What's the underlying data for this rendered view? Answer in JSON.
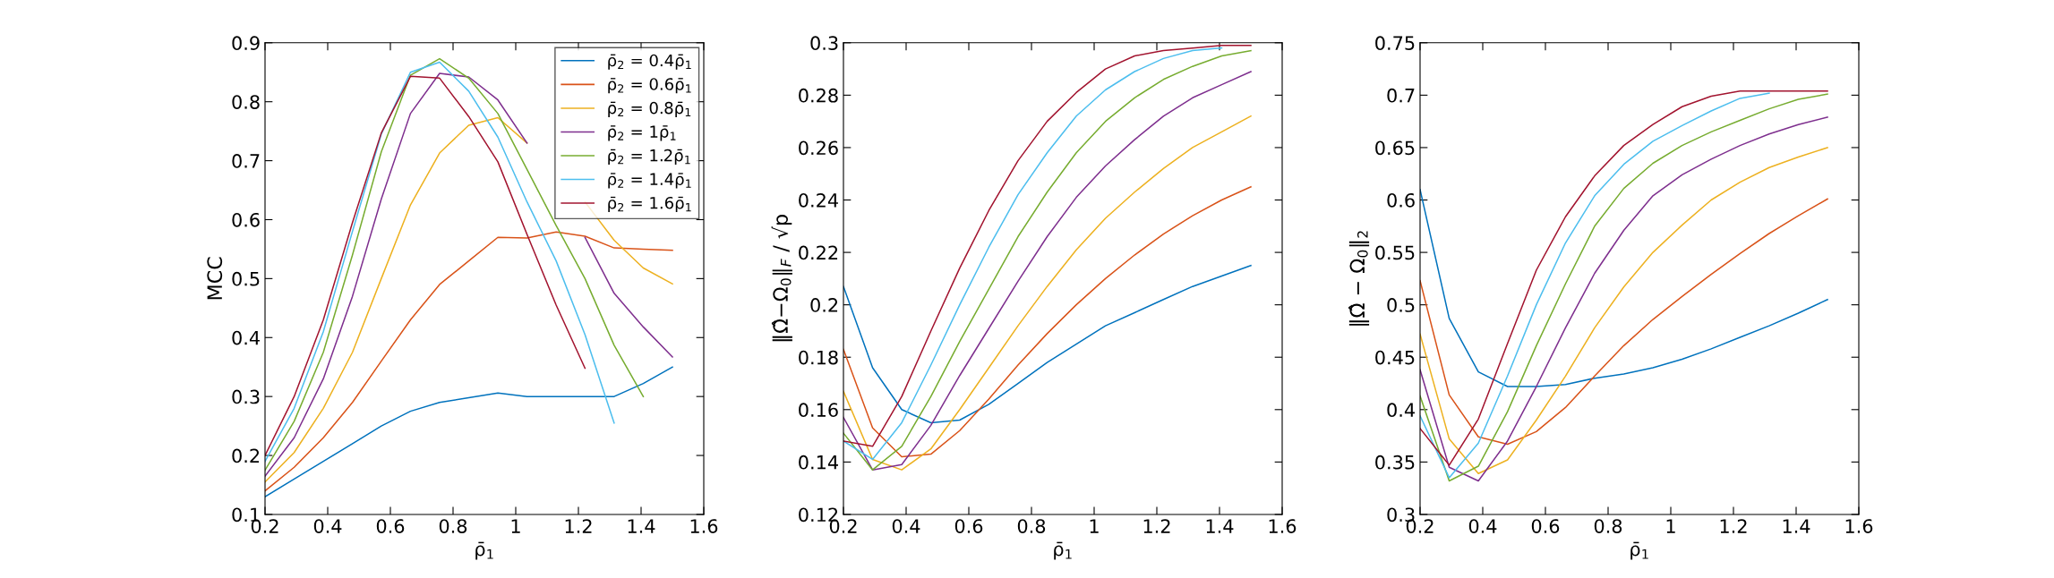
{
  "chart_data": [
    {
      "type": "line",
      "xlabel": "ρ̄$_{1}$",
      "ylabel": "MCC",
      "xlim": [
        0.2,
        1.6
      ],
      "xticks": [
        0.2,
        0.4,
        0.6,
        0.8,
        1,
        1.2,
        1.4,
        1.6
      ],
      "ylim": [
        0.1,
        0.9
      ],
      "yticks": [
        0.1,
        0.2,
        0.3,
        0.4,
        0.5,
        0.6,
        0.7,
        0.8,
        0.9
      ],
      "grid": false,
      "legend": "top right",
      "x": [
        0.2,
        0.293,
        0.386,
        0.479,
        0.571,
        0.664,
        0.757,
        0.85,
        0.943,
        1.036,
        1.129,
        1.221,
        1.314,
        1.407,
        1.5
      ],
      "series": [
        {
          "name": "ρ̄$_{2}$ = 0.4ρ̄$_{1}$",
          "color": "#0072bd",
          "values": [
            0.13,
            0.16,
            0.19,
            0.22,
            0.25,
            0.275,
            0.29,
            0.298,
            0.306,
            0.3,
            0.3,
            0.3,
            0.3,
            0.322,
            0.35
          ]
        },
        {
          "name": "ρ̄$_{2}$ = 0.6ρ̄$_{1}$",
          "color": "#d95319",
          "values": [
            0.14,
            0.18,
            0.23,
            0.29,
            0.36,
            0.43,
            0.49,
            0.53,
            0.57,
            0.569,
            0.579,
            0.572,
            0.552,
            0.55,
            0.548
          ]
        },
        {
          "name": "ρ̄$_{2}$ = 0.8ρ̄$_{1}$",
          "color": "#edb120",
          "values": [
            0.155,
            0.205,
            0.28,
            0.375,
            0.5,
            0.625,
            0.713,
            0.76,
            0.773,
            0.73,
            null,
            0.63,
            0.565,
            0.518,
            0.491
          ]
        },
        {
          "name": "ρ̄$_{2}$ = 1ρ̄$_{1}$",
          "color": "#7e2f8e",
          "values": [
            0.165,
            0.23,
            0.33,
            0.47,
            0.635,
            0.78,
            0.848,
            0.842,
            0.803,
            0.73,
            null,
            0.57,
            0.475,
            0.418,
            0.367
          ]
        },
        {
          "name": "ρ̄$_{2}$ = 1.2ρ̄$_{1}$",
          "color": "#77ac30",
          "values": [
            0.175,
            0.258,
            0.375,
            0.54,
            0.715,
            0.845,
            0.873,
            0.84,
            0.78,
            0.685,
            0.59,
            0.5,
            0.387,
            0.3,
            null
          ]
        },
        {
          "name": "ρ̄$_{2}$ = 1.4ρ̄$_{1}$",
          "color": "#4dbeee",
          "values": [
            0.19,
            0.28,
            0.41,
            0.58,
            0.745,
            0.85,
            0.867,
            0.818,
            0.74,
            0.63,
            0.53,
            0.405,
            0.255,
            null,
            null
          ]
        },
        {
          "name": "ρ̄$_{2}$ = 1.6ρ̄$_{1}$",
          "color": "#a2142f",
          "values": [
            0.2,
            0.3,
            0.43,
            0.595,
            0.747,
            0.843,
            0.84,
            0.775,
            0.698,
            0.575,
            0.455,
            0.348,
            null,
            null,
            null
          ]
        }
      ]
    },
    {
      "type": "line",
      "xlabel": "ρ̄$_{1}$",
      "ylabel": "‖Ω̂−Ω$_{0}$‖$_{F}$ / √p",
      "xlim": [
        0.2,
        1.6
      ],
      "xticks": [
        0.2,
        0.4,
        0.6,
        0.8,
        1,
        1.2,
        1.4,
        1.6
      ],
      "ylim": [
        0.12,
        0.3
      ],
      "yticks": [
        0.12,
        0.14,
        0.16,
        0.18,
        0.2,
        0.22,
        0.24,
        0.26,
        0.28,
        0.3
      ],
      "grid": false,
      "x": [
        0.2,
        0.293,
        0.386,
        0.479,
        0.571,
        0.664,
        0.757,
        0.85,
        0.943,
        1.036,
        1.129,
        1.221,
        1.314,
        1.407,
        1.5
      ],
      "series": [
        {
          "color": "#0072bd",
          "values": [
            0.207,
            0.176,
            0.16,
            0.155,
            0.156,
            0.162,
            0.17,
            0.178,
            0.185,
            0.192,
            0.197,
            0.202,
            0.207,
            0.211,
            0.215
          ]
        },
        {
          "color": "#d95319",
          "values": [
            0.183,
            0.153,
            0.142,
            0.143,
            0.152,
            0.164,
            0.177,
            0.189,
            0.2,
            0.21,
            0.219,
            0.227,
            0.234,
            0.24,
            0.245
          ]
        },
        {
          "color": "#edb120",
          "values": [
            0.167,
            0.141,
            0.137,
            0.145,
            0.16,
            0.176,
            0.192,
            0.207,
            0.221,
            0.233,
            0.243,
            0.252,
            0.26,
            0.266,
            0.272
          ]
        },
        {
          "color": "#7e2f8e",
          "values": [
            0.157,
            0.137,
            0.139,
            0.154,
            0.173,
            0.191,
            0.209,
            0.226,
            0.241,
            0.253,
            0.263,
            0.272,
            0.279,
            0.284,
            0.289
          ]
        },
        {
          "color": "#77ac30",
          "values": [
            0.151,
            0.137,
            0.146,
            0.165,
            0.186,
            0.206,
            0.226,
            0.243,
            0.258,
            0.27,
            0.279,
            0.286,
            0.291,
            0.295,
            0.297
          ]
        },
        {
          "color": "#4dbeee",
          "values": [
            0.148,
            0.141,
            0.155,
            0.177,
            0.2,
            0.222,
            0.242,
            0.258,
            0.272,
            0.282,
            0.289,
            0.294,
            0.297,
            0.298,
            null
          ]
        },
        {
          "color": "#a2142f",
          "values": [
            0.148,
            0.146,
            0.165,
            0.19,
            0.214,
            0.236,
            0.255,
            0.27,
            0.281,
            0.29,
            0.295,
            0.297,
            0.298,
            0.299,
            0.299
          ]
        }
      ]
    },
    {
      "type": "line",
      "xlabel": "ρ̄$_{1}$",
      "ylabel": "‖Ω̂ − Ω$_{0}$‖$_{2}$",
      "xlim": [
        0.2,
        1.6
      ],
      "xticks": [
        0.2,
        0.4,
        0.6,
        0.8,
        1,
        1.2,
        1.4,
        1.6
      ],
      "ylim": [
        0.3,
        0.75
      ],
      "yticks": [
        0.3,
        0.35,
        0.4,
        0.45,
        0.5,
        0.55,
        0.6,
        0.65,
        0.7,
        0.75
      ],
      "grid": false,
      "x": [
        0.2,
        0.293,
        0.386,
        0.479,
        0.571,
        0.664,
        0.757,
        0.85,
        0.943,
        1.036,
        1.129,
        1.221,
        1.314,
        1.407,
        1.5
      ],
      "series": [
        {
          "color": "#0072bd",
          "values": [
            0.61,
            0.487,
            0.436,
            0.422,
            0.422,
            0.424,
            0.43,
            0.434,
            0.44,
            0.448,
            0.458,
            0.469,
            0.48,
            0.492,
            0.505
          ]
        },
        {
          "color": "#d95319",
          "values": [
            0.523,
            0.414,
            0.374,
            0.367,
            0.379,
            0.402,
            0.432,
            0.461,
            0.486,
            0.508,
            0.529,
            0.549,
            0.568,
            0.585,
            0.601
          ]
        },
        {
          "color": "#edb120",
          "values": [
            0.472,
            0.372,
            0.339,
            0.352,
            0.39,
            0.432,
            0.478,
            0.517,
            0.55,
            0.576,
            0.6,
            0.617,
            0.631,
            0.641,
            0.65
          ]
        },
        {
          "color": "#7e2f8e",
          "values": [
            0.438,
            0.345,
            0.332,
            0.37,
            0.422,
            0.478,
            0.53,
            0.571,
            0.604,
            0.624,
            0.639,
            0.652,
            0.663,
            0.672,
            0.679
          ]
        },
        {
          "color": "#77ac30",
          "values": [
            0.413,
            0.332,
            0.346,
            0.398,
            0.461,
            0.52,
            0.575,
            0.611,
            0.635,
            0.652,
            0.665,
            0.676,
            0.687,
            0.696,
            0.701
          ]
        },
        {
          "color": "#4dbeee",
          "values": [
            0.394,
            0.335,
            0.368,
            0.432,
            0.5,
            0.559,
            0.604,
            0.634,
            0.656,
            0.671,
            0.685,
            0.697,
            0.702,
            null,
            null
          ]
        },
        {
          "color": "#a2142f",
          "values": [
            0.382,
            0.347,
            0.391,
            0.463,
            0.533,
            0.584,
            0.623,
            0.652,
            0.672,
            0.689,
            0.699,
            0.704,
            0.704,
            0.704,
            0.704
          ]
        }
      ]
    }
  ]
}
